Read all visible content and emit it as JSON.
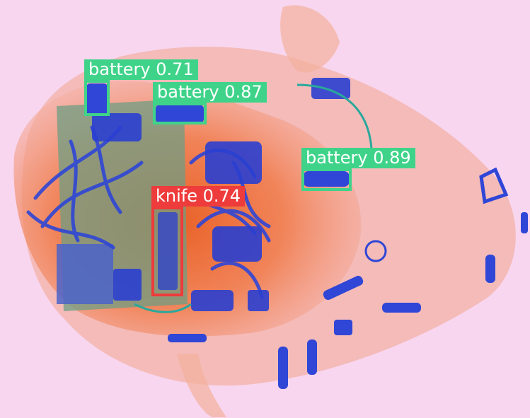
{
  "scene": {
    "description_icon": "xray-baggage-scan"
  },
  "detections": [
    {
      "id": "battery-1",
      "label": "battery 0.71",
      "class": "battery",
      "color": "#3fd38a"
    },
    {
      "id": "battery-2",
      "label": "battery 0.87",
      "class": "battery",
      "color": "#3fd38a"
    },
    {
      "id": "battery-3",
      "label": "battery 0.89",
      "class": "battery",
      "color": "#3fd38a"
    },
    {
      "id": "knife-1",
      "label": "knife 0.74",
      "class": "knife",
      "color": "#ee3b3b"
    }
  ]
}
